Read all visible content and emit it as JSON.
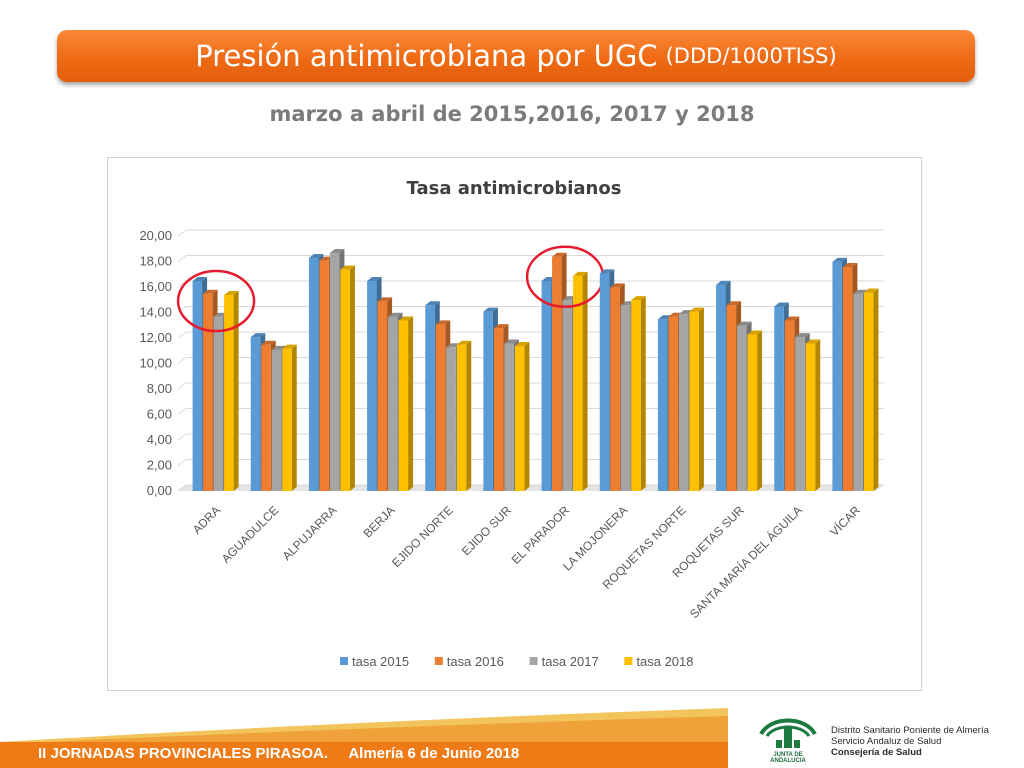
{
  "header": {
    "title": "Presión antimicrobiana por UGC",
    "title_unit": "(DDD/1000TISS)",
    "subtitle": "marzo a abril de 2015,2016, 2017 y 2018"
  },
  "footer": {
    "event": "II JORNADAS PROVINCIALES PIRASOA.",
    "place_date": "Almería 6 de Junio 2018"
  },
  "branding": {
    "logo_caption": "JUNTA DE ANDALUCIA",
    "org_line1": "Distrito Sanitario Poniente de Almería",
    "org_line2": "Servicio Andaluz de Salud",
    "org_line3": "Consejería de Salud",
    "brand_green": "#1c7a3e",
    "accent_orange": "#ee7b16"
  },
  "chart_data": {
    "type": "bar",
    "title": "Tasa antimicrobianos",
    "xlabel": "",
    "ylabel": "",
    "ylim": [
      0,
      20
    ],
    "yticks": [
      "0,00",
      "2,00",
      "4,00",
      "6,00",
      "8,00",
      "10,00",
      "12,00",
      "14,00",
      "16,00",
      "18,00",
      "20,00"
    ],
    "grid": true,
    "legend_position": "bottom",
    "categories": [
      "ADRA",
      "AGUADULCE",
      "ALPUJARRA",
      "BERJA",
      "EJIDO NORTE",
      "EJIDO SUR",
      "EL PARADOR",
      "LA MOJONERA",
      "ROQUETAS NORTE",
      "ROQUETAS SUR",
      "SANTA MARÍA DEL ÁGUILA",
      "VÍCAR"
    ],
    "series": [
      {
        "name": "tasa 2015",
        "color": "#5b9bd5",
        "values": [
          16.0,
          11.6,
          17.8,
          16.0,
          14.1,
          13.6,
          16.0,
          16.6,
          13.0,
          15.7,
          14.0,
          17.5
        ]
      },
      {
        "name": "tasa 2016",
        "color": "#ed7d31",
        "values": [
          15.0,
          11.0,
          17.6,
          14.4,
          12.6,
          12.3,
          17.9,
          15.5,
          13.2,
          14.1,
          12.9,
          17.1
        ]
      },
      {
        "name": "tasa 2017",
        "color": "#a5a5a5",
        "values": [
          13.2,
          10.6,
          18.2,
          13.2,
          10.8,
          11.1,
          14.5,
          14.1,
          13.4,
          12.5,
          11.6,
          15.0
        ]
      },
      {
        "name": "tasa 2018",
        "color": "#ffc000",
        "values": [
          14.9,
          10.7,
          16.9,
          12.9,
          11.0,
          10.9,
          16.4,
          14.5,
          13.6,
          11.8,
          11.1,
          15.1
        ]
      }
    ],
    "highlighted_categories": [
      "ADRA",
      "EL PARADOR"
    ],
    "highlight_color": "#e8192c"
  }
}
